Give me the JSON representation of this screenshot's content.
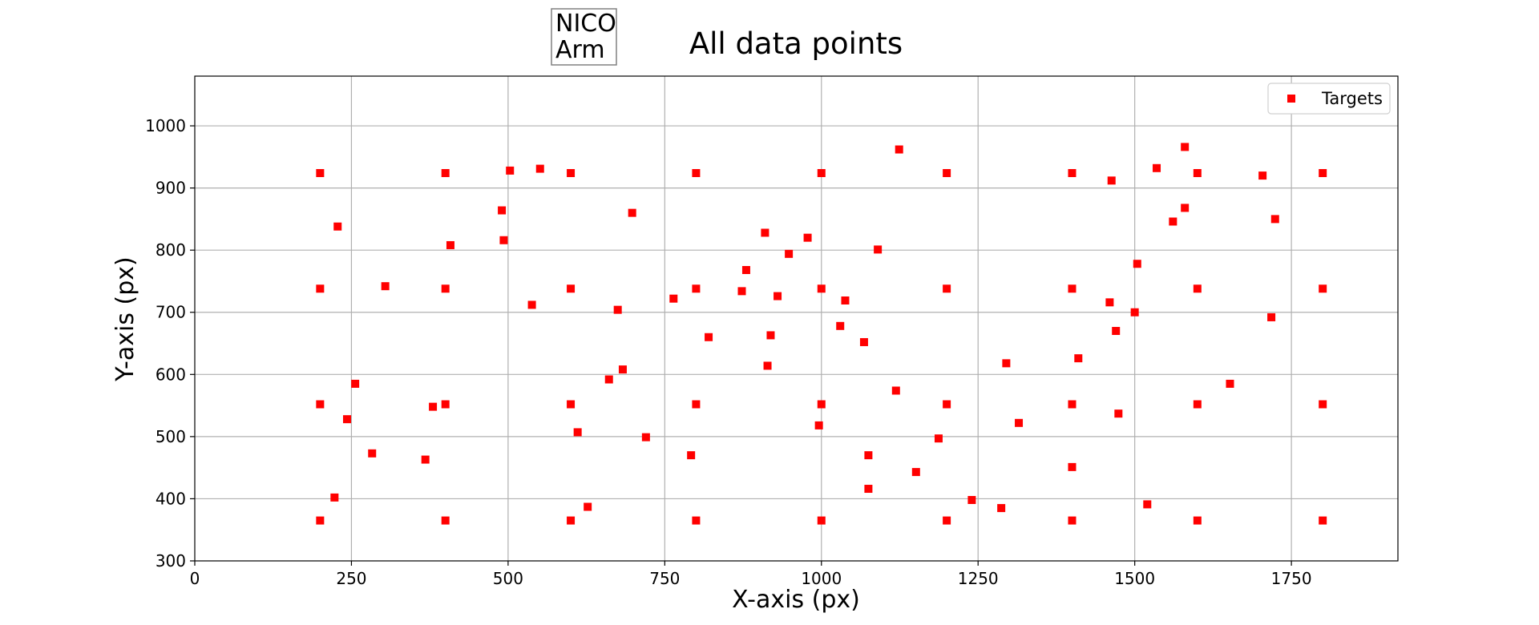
{
  "chart_data": {
    "type": "scatter",
    "title": "All data points",
    "xlabel": "X-axis (px)",
    "ylabel": "Y-axis (px)",
    "xlim": [
      0,
      1920
    ],
    "ylim": [
      300,
      1080
    ],
    "x_ticks": [
      0,
      250,
      500,
      750,
      1000,
      1250,
      1500,
      1750
    ],
    "y_ticks": [
      300,
      400,
      500,
      600,
      700,
      800,
      900,
      1000
    ],
    "grid": true,
    "legend_position": "top-right",
    "annotation": [
      "NICO",
      "Arm"
    ],
    "series": [
      {
        "name": "Targets",
        "color": "#ff0000",
        "marker": "square",
        "points": [
          [
            200,
            924
          ],
          [
            400,
            924
          ],
          [
            600,
            924
          ],
          [
            800,
            924
          ],
          [
            1000,
            924
          ],
          [
            1200,
            924
          ],
          [
            1400,
            924
          ],
          [
            1600,
            924
          ],
          [
            1800,
            924
          ],
          [
            200,
            738
          ],
          [
            400,
            738
          ],
          [
            600,
            738
          ],
          [
            800,
            738
          ],
          [
            1000,
            738
          ],
          [
            1200,
            738
          ],
          [
            1400,
            738
          ],
          [
            1600,
            738
          ],
          [
            1800,
            738
          ],
          [
            200,
            552
          ],
          [
            400,
            552
          ],
          [
            600,
            552
          ],
          [
            800,
            552
          ],
          [
            1000,
            552
          ],
          [
            1200,
            552
          ],
          [
            1400,
            552
          ],
          [
            1600,
            552
          ],
          [
            1800,
            552
          ],
          [
            200,
            365
          ],
          [
            400,
            365
          ],
          [
            600,
            365
          ],
          [
            800,
            365
          ],
          [
            1000,
            365
          ],
          [
            1200,
            365
          ],
          [
            1400,
            365
          ],
          [
            1600,
            365
          ],
          [
            1800,
            365
          ],
          [
            228,
            838
          ],
          [
            256,
            585
          ],
          [
            243,
            528
          ],
          [
            223,
            402
          ],
          [
            283,
            473
          ],
          [
            304,
            742
          ],
          [
            368,
            463
          ],
          [
            380,
            548
          ],
          [
            408,
            808
          ],
          [
            490,
            864
          ],
          [
            493,
            816
          ],
          [
            503,
            928
          ],
          [
            538,
            712
          ],
          [
            551,
            931
          ],
          [
            611,
            507
          ],
          [
            627,
            387
          ],
          [
            661,
            592
          ],
          [
            675,
            704
          ],
          [
            683,
            608
          ],
          [
            698,
            860
          ],
          [
            720,
            499
          ],
          [
            764,
            722
          ],
          [
            792,
            470
          ],
          [
            820,
            660
          ],
          [
            873,
            734
          ],
          [
            880,
            768
          ],
          [
            910,
            828
          ],
          [
            914,
            614
          ],
          [
            919,
            663
          ],
          [
            930,
            726
          ],
          [
            948,
            794
          ],
          [
            978,
            820
          ],
          [
            996,
            518
          ],
          [
            1030,
            678
          ],
          [
            1038,
            719
          ],
          [
            1068,
            652
          ],
          [
            1075,
            470
          ],
          [
            1075,
            416
          ],
          [
            1090,
            801
          ],
          [
            1119,
            574
          ],
          [
            1124,
            962
          ],
          [
            1151,
            443
          ],
          [
            1187,
            497
          ],
          [
            1240,
            398
          ],
          [
            1287,
            385
          ],
          [
            1295,
            618
          ],
          [
            1315,
            522
          ],
          [
            1400,
            451
          ],
          [
            1410,
            626
          ],
          [
            1460,
            716
          ],
          [
            1463,
            912
          ],
          [
            1470,
            670
          ],
          [
            1474,
            537
          ],
          [
            1500,
            700
          ],
          [
            1504,
            778
          ],
          [
            1520,
            391
          ],
          [
            1535,
            932
          ],
          [
            1561,
            846
          ],
          [
            1580,
            966
          ],
          [
            1580,
            868
          ],
          [
            1652,
            585
          ],
          [
            1704,
            920
          ],
          [
            1718,
            692
          ],
          [
            1724,
            850
          ]
        ]
      }
    ]
  }
}
